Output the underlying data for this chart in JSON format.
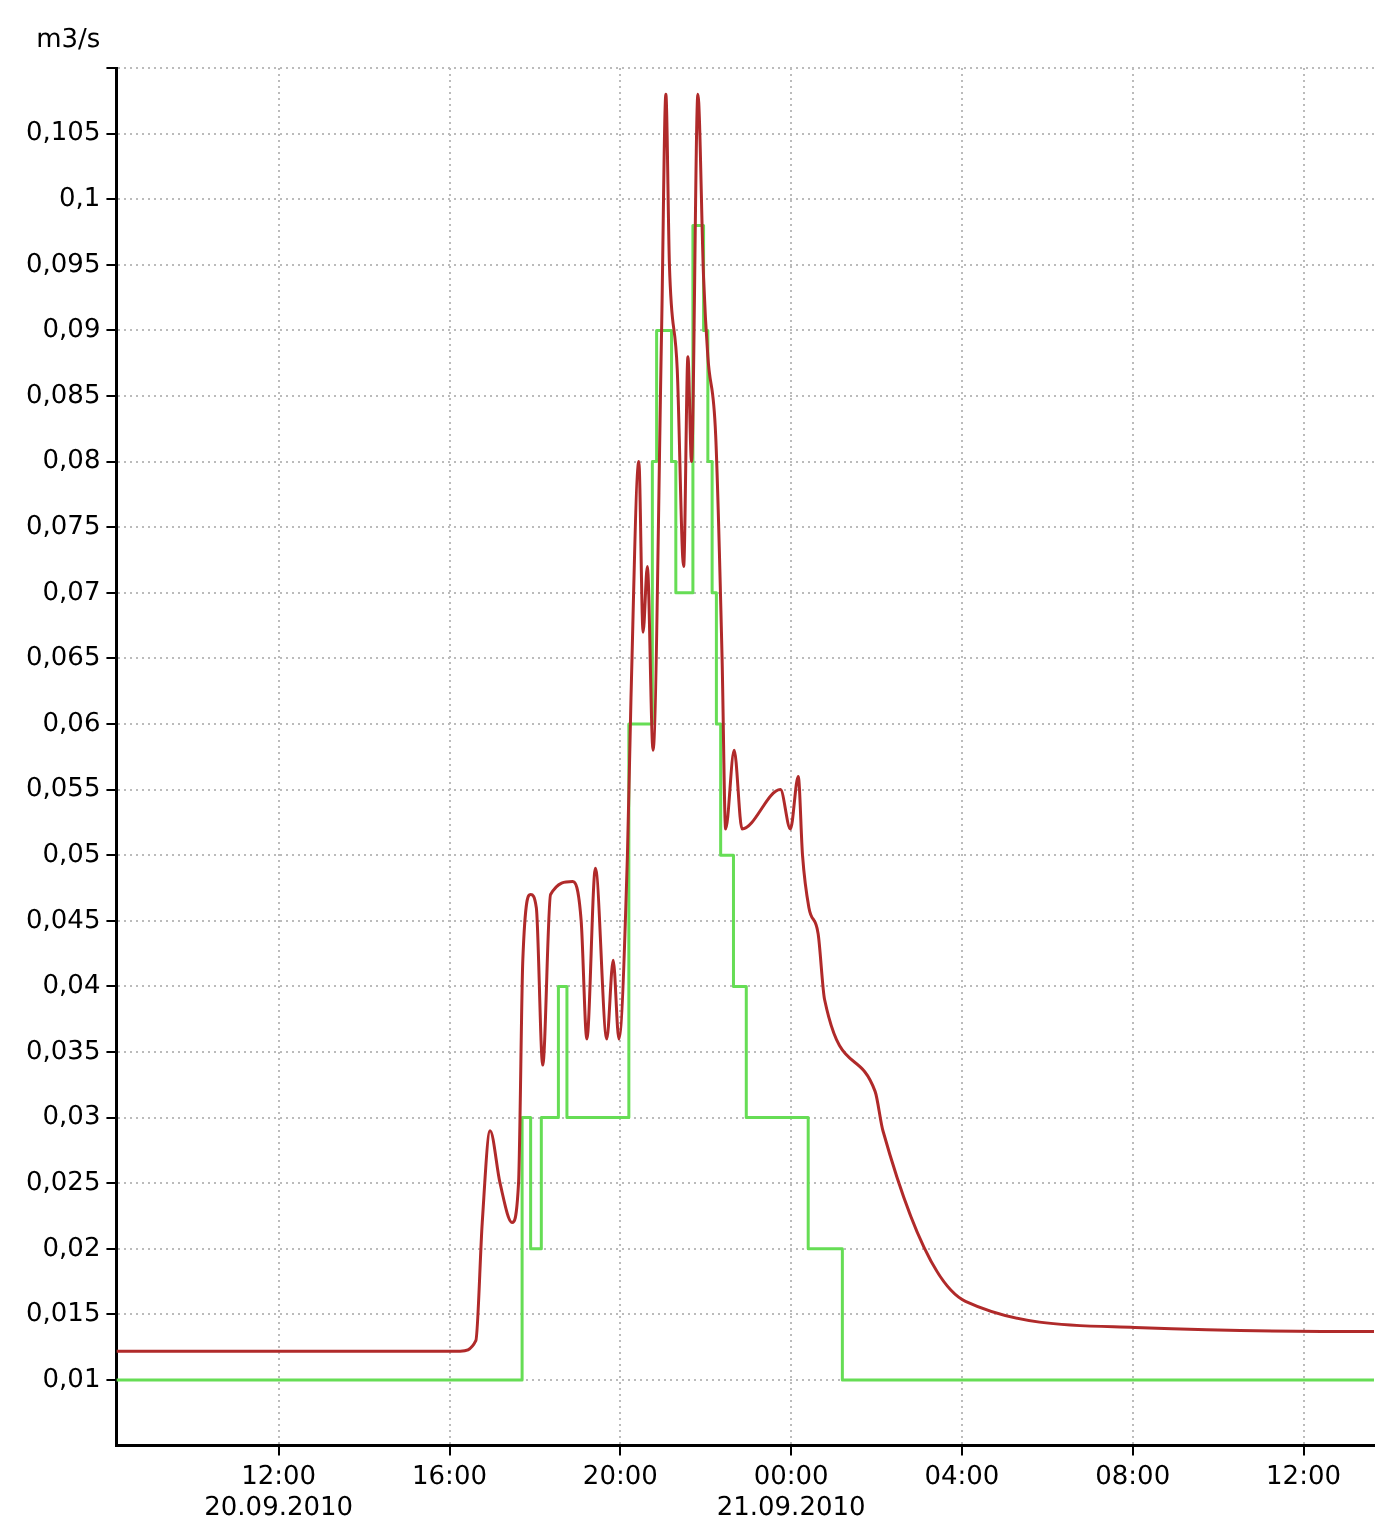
{
  "chart_data": {
    "type": "line",
    "ylabel": "m3/s",
    "xlim": [
      "2010-09-20T08:12",
      "2010-09-21T13:39"
    ],
    "xticks": [
      {
        "value": "2010-09-20T12:00",
        "label": "12:00\n20.09.2010"
      },
      {
        "value": "2010-09-20T16:00",
        "label": "16:00"
      },
      {
        "value": "2010-09-20T20:00",
        "label": "20:00"
      },
      {
        "value": "2010-09-21T00:00",
        "label": "00:00\n21.09.2010"
      },
      {
        "value": "2010-09-21T04:00",
        "label": "04:00"
      },
      {
        "value": "2010-09-21T08:00",
        "label": "08:00"
      },
      {
        "value": "2010-09-21T12:00",
        "label": "12:00"
      }
    ],
    "ylim": [
      0.005,
      0.11
    ],
    "yticks": [
      {
        "value": 0.01,
        "label": "0,01"
      },
      {
        "value": 0.015,
        "label": "0,015"
      },
      {
        "value": 0.02,
        "label": "0,02"
      },
      {
        "value": 0.025,
        "label": "0,025"
      },
      {
        "value": 0.03,
        "label": "0,03"
      },
      {
        "value": 0.035,
        "label": "0,035"
      },
      {
        "value": 0.04,
        "label": "0,04"
      },
      {
        "value": 0.045,
        "label": "0,045"
      },
      {
        "value": 0.05,
        "label": "0,05"
      },
      {
        "value": 0.055,
        "label": "0,055"
      },
      {
        "value": 0.06,
        "label": "0,06"
      },
      {
        "value": 0.065,
        "label": "0,065"
      },
      {
        "value": 0.07,
        "label": "0,07"
      },
      {
        "value": 0.075,
        "label": "0,075"
      },
      {
        "value": 0.08,
        "label": "0,08"
      },
      {
        "value": 0.085,
        "label": "0,085"
      },
      {
        "value": 0.09,
        "label": "0,09"
      },
      {
        "value": 0.095,
        "label": "0,095"
      },
      {
        "value": 0.1,
        "label": "0,1"
      },
      {
        "value": 0.105,
        "label": "0,105"
      },
      {
        "value": 0.11,
        "label": null
      }
    ],
    "grid": true,
    "legend": false,
    "marker": "none",
    "line_style": "solid",
    "series": [
      {
        "type": "step",
        "color": "#66dd55",
        "x": [
          "2010-09-20T08:12",
          "2010-09-20T17:42",
          "2010-09-20T17:54",
          "2010-09-20T18:09",
          "2010-09-20T18:33",
          "2010-09-20T18:45",
          "2010-09-20T20:12",
          "2010-09-20T20:45",
          "2010-09-20T20:51",
          "2010-09-20T21:12",
          "2010-09-20T21:18",
          "2010-09-20T21:42",
          "2010-09-20T21:57",
          "2010-09-20T22:03",
          "2010-09-20T22:09",
          "2010-09-20T22:15",
          "2010-09-20T22:21",
          "2010-09-20T22:39",
          "2010-09-20T22:57",
          "2010-09-21T00:24",
          "2010-09-21T01:12",
          "2010-09-21T13:39"
        ],
        "values": [
          0.01,
          0.03,
          0.02,
          0.03,
          0.04,
          0.03,
          0.06,
          0.08,
          0.09,
          0.08,
          0.07,
          0.098,
          0.09,
          0.08,
          0.07,
          0.06,
          0.05,
          0.04,
          0.03,
          0.02,
          0.01,
          0.01
        ]
      },
      {
        "type": "line",
        "color": "#b02a2a",
        "x": [
          "2010-09-20T08:12",
          "2010-09-20T16:15",
          "2010-09-20T16:37",
          "2010-09-20T16:46",
          "2010-09-20T16:57",
          "2010-09-20T17:11",
          "2010-09-20T17:28",
          "2010-09-20T17:37",
          "2010-09-20T17:43",
          "2010-09-20T17:54",
          "2010-09-20T18:02",
          "2010-09-20T18:11",
          "2010-09-20T18:22",
          "2010-09-20T18:53",
          "2010-09-20T19:05",
          "2010-09-20T19:13",
          "2010-09-20T19:25",
          "2010-09-20T19:41",
          "2010-09-20T19:50",
          "2010-09-20T19:58",
          "2010-09-20T20:10",
          "2010-09-20T20:15",
          "2010-09-20T20:26",
          "2010-09-20T20:32",
          "2010-09-20T20:38",
          "2010-09-20T20:46",
          "2010-09-20T20:58",
          "2010-09-20T21:04",
          "2010-09-20T21:09",
          "2010-09-20T21:20",
          "2010-09-20T21:29",
          "2010-09-20T21:35",
          "2010-09-20T21:40",
          "2010-09-20T21:49",
          "2010-09-20T21:57",
          "2010-09-20T22:03",
          "2010-09-20T22:14",
          "2010-09-20T22:23",
          "2010-09-20T22:28",
          "2010-09-20T22:40",
          "2010-09-20T22:51",
          "2010-09-20T23:45",
          "2010-09-20T23:59",
          "2010-09-21T00:10",
          "2010-09-21T00:16",
          "2010-09-21T00:25",
          "2010-09-21T00:38",
          "2010-09-21T00:47",
          "2010-09-21T01:58",
          "2010-09-21T02:09",
          "2010-09-21T04:05",
          "2010-09-21T08:03",
          "2010-09-21T12:26",
          "2010-09-21T13:39"
        ],
        "values": [
          0.0122,
          0.0122,
          0.013,
          0.022,
          0.029,
          0.025,
          0.022,
          0.025,
          0.042,
          0.047,
          0.046,
          0.034,
          0.047,
          0.048,
          0.045,
          0.036,
          0.049,
          0.036,
          0.042,
          0.036,
          0.05,
          0.062,
          0.08,
          0.067,
          0.072,
          0.058,
          0.09,
          0.108,
          0.095,
          0.087,
          0.072,
          0.088,
          0.08,
          0.108,
          0.094,
          0.088,
          0.082,
          0.065,
          0.052,
          0.058,
          0.052,
          0.055,
          0.052,
          0.056,
          0.05,
          0.046,
          0.044,
          0.039,
          0.032,
          0.029,
          0.016,
          0.014,
          0.0137,
          0.0137
        ]
      }
    ]
  }
}
